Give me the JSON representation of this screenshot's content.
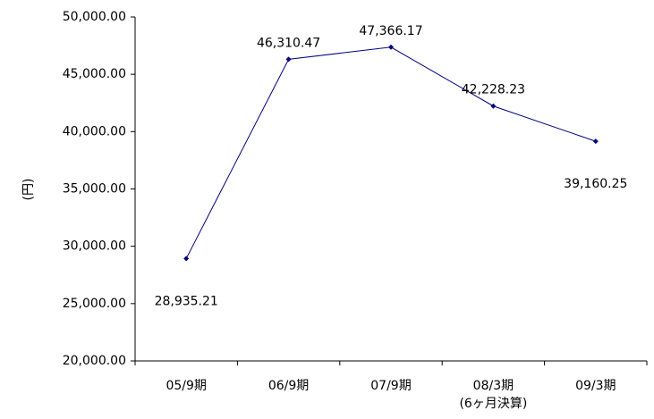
{
  "chart_data": {
    "type": "line",
    "y_label": "(円)",
    "categories": [
      "05/9期",
      "06/9期",
      "07/9期",
      "08/3期\n(6ヶ月決算)",
      "09/3期"
    ],
    "series": [
      {
        "color": "#000080",
        "values": [
          28935.21,
          46310.47,
          47366.17,
          42228.23,
          39160.25
        ],
        "value_labels": [
          "28,935.21",
          "46,310.47",
          "47,366.17",
          "42,228.23",
          "39,160.25"
        ]
      }
    ],
    "ylim": [
      20000,
      50000
    ],
    "yticks": [
      {
        "value": 20000,
        "label": "20,000.00"
      },
      {
        "value": 25000,
        "label": "25,000.00"
      },
      {
        "value": 30000,
        "label": "30,000.00"
      },
      {
        "value": 35000,
        "label": "35,000.00"
      },
      {
        "value": 40000,
        "label": "40,000.00"
      },
      {
        "value": 45000,
        "label": "45,000.00"
      },
      {
        "value": 50000,
        "label": "50,000.00"
      }
    ],
    "grid": false
  }
}
